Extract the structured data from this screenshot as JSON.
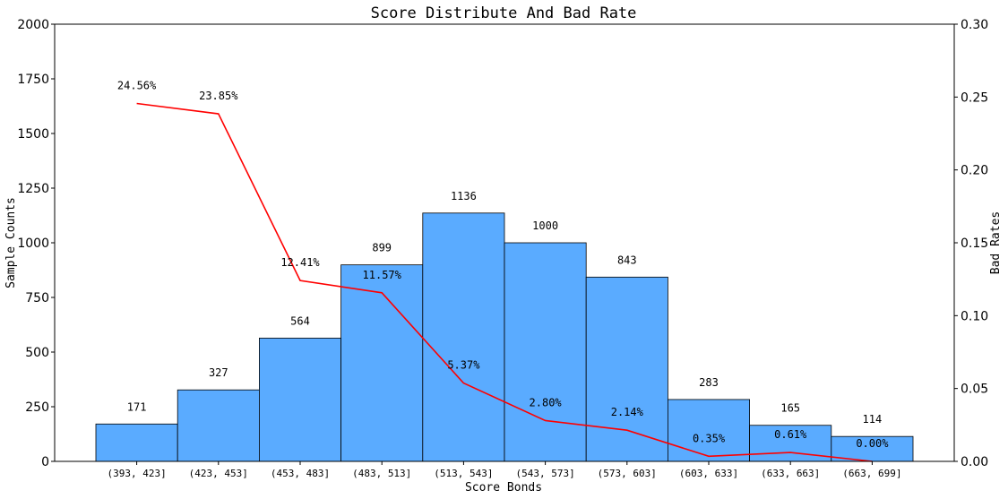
{
  "chart_data": {
    "type": "bar",
    "title": "Score Distribute And Bad Rate",
    "xlabel": "Score Bonds",
    "ylabel": "Sample Counts",
    "y2label": "Bad Rates",
    "ylim": [
      0,
      2000
    ],
    "y2lim": [
      0,
      0.3
    ],
    "y_ticks": [
      "0",
      "250",
      "500",
      "750",
      "1000",
      "1250",
      "1500",
      "1750",
      "2000"
    ],
    "y2_ticks": [
      "0.00",
      "0.05",
      "0.10",
      "0.15",
      "0.20",
      "0.25",
      "0.30"
    ],
    "categories": [
      "(393, 423]",
      "(423, 453]",
      "(453, 483]",
      "(483, 513]",
      "(513, 543]",
      "(543, 573]",
      "(573, 603]",
      "(603, 633]",
      "(633, 663]",
      "(663, 699]"
    ],
    "series": [
      {
        "type": "bar",
        "axis": "left",
        "color": "#5aabff",
        "values": [
          171,
          327,
          564,
          899,
          1136,
          1000,
          843,
          283,
          165,
          114
        ],
        "labels": [
          "171",
          "327",
          "564",
          "899",
          "1136",
          "1000",
          "843",
          "283",
          "165",
          "114"
        ]
      },
      {
        "type": "line",
        "axis": "right",
        "color": "#ff0000",
        "values": [
          0.2456,
          0.2385,
          0.1241,
          0.1157,
          0.0537,
          0.028,
          0.0214,
          0.0035,
          0.0061,
          0.0
        ],
        "labels": [
          "24.56%",
          "23.85%",
          "12.41%",
          "11.57%",
          "5.37%",
          "2.80%",
          "2.14%",
          "0.35%",
          "0.61%",
          "0.00%"
        ]
      }
    ],
    "grid": false,
    "legend": "none"
  }
}
